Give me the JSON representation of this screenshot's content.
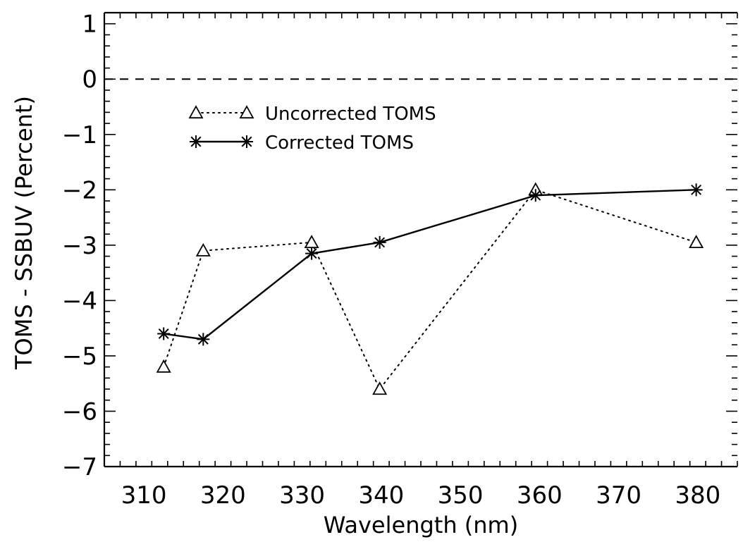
{
  "chart_data": {
    "type": "line",
    "title": "",
    "xlabel": "Wavelength (nm)",
    "ylabel": "TOMS - SSBUV (Percent)",
    "xlim": [
      305,
      385
    ],
    "ylim": [
      -7,
      1.2
    ],
    "x_ticks": [
      310,
      320,
      330,
      340,
      350,
      360,
      370,
      380
    ],
    "y_ticks": [
      1,
      0,
      -1,
      -2,
      -3,
      -4,
      -5,
      -6,
      -7
    ],
    "x_tick_labels": [
      "310",
      "320",
      "330",
      "340",
      "350",
      "360",
      "370",
      "380"
    ],
    "y_tick_labels": [
      "1",
      "0",
      "−1",
      "−2",
      "−3",
      "−4",
      "−5",
      "−6",
      "−7"
    ],
    "reference_line": {
      "y": 0,
      "style": "dashed"
    },
    "legend_position": "upper-left",
    "series": [
      {
        "name": "Uncorrected TOMS",
        "marker": "triangle",
        "line_style": "dotted",
        "x": [
          312.5,
          317.5,
          331.2,
          339.8,
          359.5,
          379.8
        ],
        "y": [
          -5.2,
          -3.1,
          -2.95,
          -5.6,
          -2.0,
          -2.95
        ]
      },
      {
        "name": "Corrected TOMS",
        "marker": "asterisk",
        "line_style": "solid",
        "x": [
          312.5,
          317.5,
          331.2,
          339.8,
          359.5,
          379.8
        ],
        "y": [
          -4.6,
          -4.7,
          -3.15,
          -2.95,
          -2.1,
          -2.0
        ]
      }
    ]
  }
}
